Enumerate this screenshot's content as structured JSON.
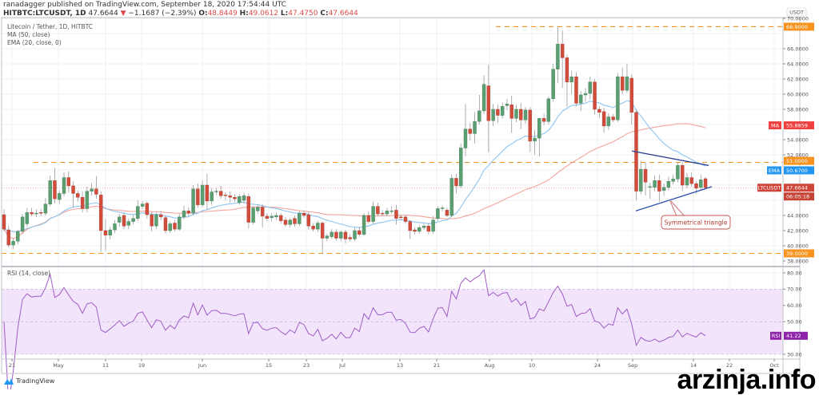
{
  "header": {
    "publisher_line": "ranadagger published on TradingView.com, September 18, 2020 17:54:44 UTC",
    "symbol": "HITBTC:LTCUSDT, 1D",
    "last": "47.6644",
    "change": "−1.1687 (−2.39%)",
    "o_label": "O:",
    "o": "48.8449",
    "h_label": "H:",
    "h": "49.0612",
    "l_label": "L:",
    "l": "47.4750",
    "c_label": "C:",
    "c": "47.6644"
  },
  "legend": {
    "title": "Litecoin / Tether, 1D, HITBTC",
    "ma": "MA (50, close)",
    "ema": "EMA (20, close, 0)",
    "rsi": "RSI (14, close)"
  },
  "price_axis": {
    "currency": "USDT",
    "ticks": [
      "70.0000",
      "66.0000",
      "64.0000",
      "62.0000",
      "60.0000",
      "58.0000",
      "54.0000",
      "52.0000",
      "44.0000",
      "42.0000",
      "40.0000",
      "38.0000"
    ],
    "tick_values": [
      70,
      66,
      64,
      62,
      60,
      58,
      54,
      52,
      44,
      42,
      40,
      38
    ],
    "labels": {
      "resistance_top": "68.9000",
      "ma_tag": "MA",
      "ma_value": "55.8859",
      "level_51": "51.0000",
      "ema_tag": "EMA",
      "ema_value": "50.6700",
      "symbol_tag": "LTCUSDT",
      "price_value": "47.6644",
      "countdown": "06:05:18",
      "support": "39.0000"
    }
  },
  "rsi_axis": {
    "ticks": [
      "80.00",
      "70.00",
      "60.00",
      "50.00",
      "30.00"
    ],
    "tick_values": [
      80,
      70,
      60,
      50,
      30
    ],
    "tag": "RSI",
    "value": "41.22"
  },
  "time_axis": [
    "21",
    "May",
    "11",
    "19",
    "Jun",
    "15",
    "23",
    "Jul",
    "13",
    "21",
    "Aug",
    "10",
    "24",
    "Sep",
    "14",
    "22",
    "Oct"
  ],
  "annotation": "Symmetrical triangle",
  "footer": {
    "brand": "TradingView",
    "watermark": "arzinja.info"
  },
  "colors": {
    "up": "#5b9e72",
    "down": "#d24c3c",
    "ma": "#f5a59c",
    "ema": "#8cc4f2",
    "rsi": "#a05cc4",
    "level": "#f7931e",
    "ema_tag": "#2196f3",
    "ma_tag": "#ef4040",
    "rsi_tag": "#8e24aa"
  },
  "chart_data": {
    "type": "candlestick",
    "ylim": [
      38,
      70
    ],
    "rsi_ylim": [
      28,
      84
    ],
    "grid": true,
    "indicators": {
      "ma_period": 50,
      "ema_period": 20,
      "rsi_period": 14,
      "rsi_band": [
        30,
        70
      ]
    },
    "horizontal_levels": [
      68.9,
      51.0,
      39.0
    ],
    "triangle": {
      "upper": [
        52.5,
        50.6
      ],
      "lower": [
        44.6,
        47.8
      ]
    },
    "ohlc": [
      [
        44.1,
        44.8,
        41.9,
        42.2
      ],
      [
        42.1,
        42.6,
        39.8,
        40.1
      ],
      [
        40.1,
        41.0,
        39.6,
        40.6
      ],
      [
        40.6,
        42.1,
        40.2,
        41.9
      ],
      [
        41.9,
        44.2,
        41.5,
        43.8
      ],
      [
        42.9,
        45.0,
        42.5,
        44.4
      ],
      [
        44.4,
        45.0,
        43.9,
        44.2
      ],
      [
        44.2,
        44.8,
        43.8,
        44.3
      ],
      [
        44.4,
        44.9,
        43.9,
        44.3
      ],
      [
        44.3,
        46.3,
        44.0,
        45.5
      ],
      [
        45.5,
        49.3,
        45.2,
        48.6
      ],
      [
        48.6,
        50.3,
        45.6,
        46.2
      ],
      [
        46.1,
        47.3,
        45.5,
        46.9
      ],
      [
        46.9,
        49.7,
        46.5,
        49.0
      ],
      [
        49.0,
        49.8,
        47.0,
        47.9
      ],
      [
        47.9,
        48.5,
        45.0,
        46.9
      ],
      [
        46.9,
        47.3,
        45.8,
        46.4
      ],
      [
        46.4,
        47.2,
        44.4,
        44.9
      ],
      [
        44.9,
        47.8,
        44.4,
        47.2
      ],
      [
        47.2,
        48.3,
        46.6,
        47.5
      ],
      [
        47.5,
        49.2,
        46.2,
        46.8
      ],
      [
        46.7,
        47.2,
        39.2,
        42.0
      ],
      [
        42.0,
        43.5,
        39.4,
        41.4
      ],
      [
        41.4,
        42.5,
        40.8,
        42.1
      ],
      [
        42.1,
        43.4,
        41.7,
        42.9
      ],
      [
        43.1,
        44.2,
        42.5,
        43.8
      ],
      [
        44.0,
        44.4,
        42.2,
        42.6
      ],
      [
        42.7,
        43.6,
        42.2,
        43.2
      ],
      [
        43.2,
        44.0,
        42.8,
        43.6
      ],
      [
        43.6,
        46.0,
        43.3,
        45.2
      ],
      [
        45.2,
        45.9,
        44.8,
        45.5
      ],
      [
        45.6,
        45.9,
        43.6,
        44.1
      ],
      [
        44.1,
        44.5,
        41.9,
        42.6
      ],
      [
        42.6,
        44.4,
        42.2,
        44.1
      ],
      [
        44.1,
        44.6,
        43.4,
        43.8
      ],
      [
        43.7,
        44.0,
        41.6,
        42.0
      ],
      [
        42.0,
        43.2,
        41.7,
        42.9
      ],
      [
        43.0,
        43.4,
        41.9,
        42.2
      ],
      [
        42.2,
        44.2,
        42.0,
        43.8
      ],
      [
        43.8,
        45.3,
        43.5,
        44.6
      ],
      [
        44.6,
        45.1,
        43.9,
        44.3
      ],
      [
        44.3,
        48.0,
        44.0,
        47.5
      ],
      [
        47.5,
        48.2,
        45.0,
        45.4
      ],
      [
        45.4,
        48.6,
        45.1,
        48.0
      ],
      [
        48.0,
        49.5,
        44.8,
        45.9
      ],
      [
        45.9,
        47.6,
        45.4,
        47.1
      ],
      [
        47.1,
        47.6,
        46.7,
        47.2
      ],
      [
        47.2,
        47.9,
        46.2,
        46.6
      ],
      [
        46.7,
        47.0,
        46.0,
        46.6
      ],
      [
        46.6,
        47.2,
        45.7,
        46.4
      ],
      [
        46.4,
        46.8,
        45.8,
        46.2
      ],
      [
        45.7,
        46.8,
        45.4,
        46.5
      ],
      [
        46.0,
        47.0,
        45.5,
        46.6
      ],
      [
        46.5,
        46.9,
        42.3,
        43.1
      ],
      [
        43.1,
        45.3,
        42.8,
        45.0
      ],
      [
        44.6,
        45.4,
        44.2,
        45.1
      ],
      [
        45.1,
        45.5,
        42.4,
        43.9
      ],
      [
        43.9,
        44.3,
        43.2,
        43.6
      ],
      [
        43.7,
        44.3,
        43.2,
        43.9
      ],
      [
        43.8,
        44.4,
        43.4,
        44.0
      ],
      [
        44.0,
        44.3,
        42.9,
        43.3
      ],
      [
        43.4,
        43.8,
        42.5,
        42.8
      ],
      [
        42.8,
        43.7,
        42.4,
        43.4
      ],
      [
        43.6,
        44.0,
        42.5,
        42.9
      ],
      [
        42.9,
        44.6,
        42.6,
        44.3
      ],
      [
        44.3,
        44.7,
        43.7,
        44.0
      ],
      [
        44.1,
        44.5,
        42.1,
        42.6
      ],
      [
        42.6,
        43.0,
        41.9,
        42.2
      ],
      [
        42.2,
        43.3,
        41.8,
        43.0
      ],
      [
        43.0,
        43.2,
        39.0,
        41.0
      ],
      [
        41.0,
        41.6,
        40.6,
        41.3
      ],
      [
        41.2,
        42.2,
        40.9,
        41.8
      ],
      [
        41.8,
        42.2,
        40.7,
        41.0
      ],
      [
        41.0,
        42.0,
        40.6,
        41.8
      ],
      [
        41.8,
        42.1,
        40.3,
        40.9
      ],
      [
        41.1,
        41.5,
        40.6,
        40.9
      ],
      [
        40.9,
        42.4,
        40.6,
        42.0
      ],
      [
        42.0,
        42.5,
        41.2,
        41.5
      ],
      [
        41.5,
        44.3,
        41.3,
        44.0
      ],
      [
        44.0,
        44.5,
        42.9,
        43.2
      ],
      [
        43.2,
        45.8,
        42.9,
        45.2
      ],
      [
        45.2,
        45.7,
        43.9,
        44.2
      ],
      [
        44.3,
        44.7,
        43.9,
        44.2
      ],
      [
        44.2,
        45.0,
        43.9,
        44.6
      ],
      [
        44.6,
        45.2,
        44.2,
        44.6
      ],
      [
        44.7,
        45.4,
        42.8,
        43.6
      ],
      [
        43.8,
        44.1,
        43.4,
        43.7
      ],
      [
        43.8,
        44.0,
        42.9,
        43.2
      ],
      [
        43.2,
        43.4,
        40.9,
        42.0
      ],
      [
        42.1,
        42.4,
        41.5,
        41.9
      ],
      [
        41.9,
        42.7,
        41.6,
        42.4
      ],
      [
        42.4,
        42.9,
        42.1,
        42.6
      ],
      [
        42.6,
        43.0,
        41.5,
        41.9
      ],
      [
        41.9,
        43.9,
        41.6,
        43.4
      ],
      [
        43.6,
        45.2,
        43.3,
        44.9
      ],
      [
        44.9,
        45.3,
        44.5,
        45.0
      ],
      [
        44.7,
        45.0,
        43.8,
        44.0
      ],
      [
        44.0,
        49.4,
        43.8,
        48.9
      ],
      [
        48.9,
        49.5,
        46.9,
        47.9
      ],
      [
        47.9,
        53.5,
        47.6,
        52.9
      ],
      [
        52.9,
        58.7,
        51.8,
        55.4
      ],
      [
        55.4,
        56.2,
        53.9,
        54.8
      ],
      [
        54.8,
        57.6,
        53.5,
        56.4
      ],
      [
        56.4,
        59.9,
        56.0,
        57.8
      ],
      [
        57.8,
        62.5,
        57.4,
        61.3
      ],
      [
        61.1,
        63.9,
        52.3,
        56.5
      ],
      [
        56.5,
        58.7,
        55.8,
        58.0
      ],
      [
        58.0,
        58.6,
        56.2,
        57.2
      ],
      [
        57.2,
        58.9,
        56.8,
        58.4
      ],
      [
        58.5,
        59.4,
        57.9,
        58.7
      ],
      [
        58.6,
        59.8,
        54.9,
        56.8
      ],
      [
        56.8,
        58.6,
        56.3,
        58.0
      ],
      [
        58.0,
        58.8,
        55.4,
        56.6
      ],
      [
        56.6,
        58.3,
        56.1,
        57.9
      ],
      [
        57.9,
        58.3,
        52.4,
        53.8
      ],
      [
        53.8,
        55.3,
        52.0,
        54.2
      ],
      [
        54.2,
        56.9,
        51.8,
        56.8
      ],
      [
        56.8,
        57.4,
        55.9,
        56.4
      ],
      [
        56.4,
        59.7,
        56.0,
        59.4
      ],
      [
        59.4,
        64.0,
        59.0,
        63.3
      ],
      [
        63.3,
        68.9,
        61.5,
        66.6
      ],
      [
        66.6,
        68.4,
        60.8,
        64.8
      ],
      [
        64.8,
        65.2,
        58.3,
        61.6
      ],
      [
        61.6,
        63.1,
        60.0,
        62.3
      ],
      [
        62.3,
        62.9,
        58.4,
        58.8
      ],
      [
        58.8,
        60.4,
        57.8,
        59.9
      ],
      [
        59.9,
        60.8,
        59.0,
        60.1
      ],
      [
        60.1,
        62.3,
        59.3,
        61.6
      ],
      [
        61.6,
        62.0,
        57.3,
        58.0
      ],
      [
        58.0,
        58.4,
        56.9,
        57.6
      ],
      [
        57.7,
        58.2,
        54.9,
        55.8
      ],
      [
        55.8,
        57.5,
        55.3,
        57.0
      ],
      [
        57.0,
        57.4,
        56.3,
        56.6
      ],
      [
        56.6,
        62.8,
        56.3,
        62.3
      ],
      [
        62.3,
        63.5,
        60.0,
        60.5
      ],
      [
        60.5,
        64.0,
        60.2,
        62.3
      ],
      [
        62.1,
        62.6,
        56.0,
        57.6
      ],
      [
        57.6,
        58.0,
        46.0,
        47.2
      ],
      [
        47.2,
        51.2,
        46.8,
        50.1
      ],
      [
        50.1,
        51.0,
        46.6,
        48.4
      ],
      [
        47.8,
        48.3,
        46.2,
        47.8
      ],
      [
        47.7,
        49.3,
        47.2,
        48.6
      ],
      [
        48.6,
        49.4,
        45.8,
        47.2
      ],
      [
        47.3,
        48.2,
        46.6,
        47.7
      ],
      [
        47.7,
        49.1,
        47.3,
        48.5
      ],
      [
        48.5,
        49.4,
        48.1,
        48.8
      ],
      [
        48.8,
        51.0,
        48.4,
        50.6
      ],
      [
        50.6,
        51.0,
        47.2,
        48.0
      ],
      [
        48.0,
        49.6,
        47.6,
        49.0
      ],
      [
        49.0,
        49.7,
        47.8,
        48.2
      ],
      [
        48.2,
        48.5,
        46.9,
        47.6
      ],
      [
        47.7,
        49.4,
        47.3,
        48.7
      ],
      [
        48.8449,
        49.0612,
        47.475,
        47.6644
      ]
    ]
  }
}
